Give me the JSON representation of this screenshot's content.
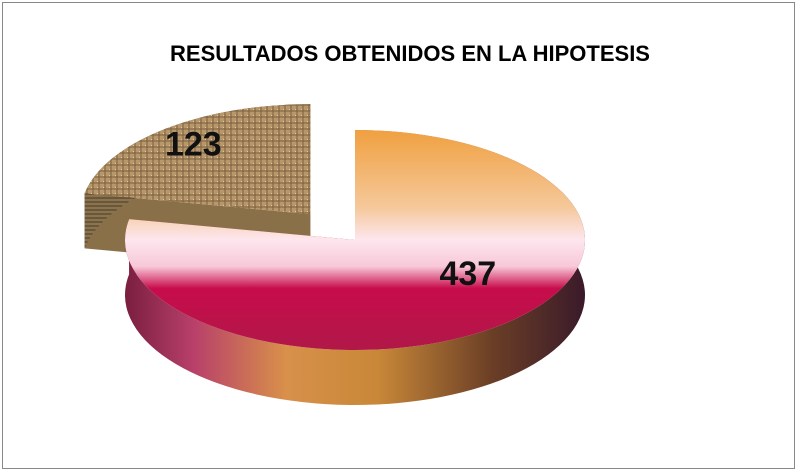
{
  "chart_data": {
    "type": "pie",
    "title": "RESULTADOS OBTENIDOS EN LA HIPOTESIS",
    "values": [
      437,
      123
    ],
    "colors": [
      "#9a2a55",
      "#8a7048"
    ],
    "exploded": [
      false,
      true
    ]
  }
}
